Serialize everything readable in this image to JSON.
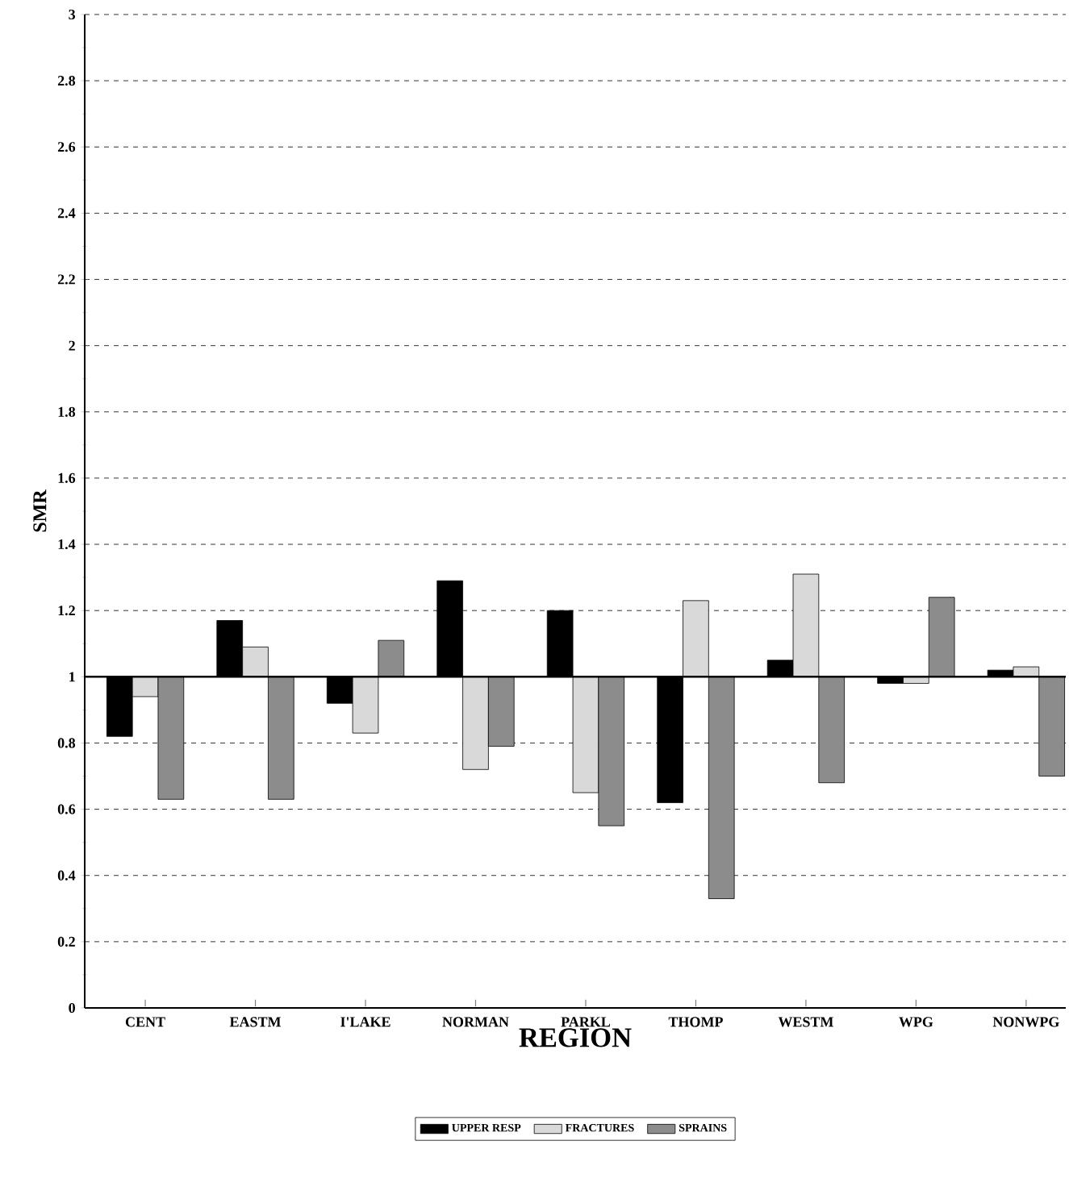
{
  "chart_data": {
    "type": "bar",
    "xlabel": "REGION",
    "ylabel": "SMR",
    "categories": [
      "CENT",
      "EASTM",
      "I'LAKE",
      "NORMAN",
      "PARKL",
      "THOMP",
      "WESTM",
      "WPG",
      "NONWPG"
    ],
    "series": [
      {
        "name": "UPPER RESP",
        "color": "#000000",
        "base": [
          1,
          1,
          1,
          1,
          1,
          1,
          1,
          1,
          1
        ],
        "values": [
          -0.18,
          0.17,
          -0.08,
          0.29,
          0.2,
          -0.38,
          0.05,
          -0.02,
          0.02
        ]
      },
      {
        "name": "FRACTURES",
        "color": "#d9d9d9",
        "base": [
          1,
          1,
          1,
          1,
          1,
          1,
          1,
          1,
          1
        ],
        "values": [
          -0.06,
          0.09,
          -0.17,
          -0.28,
          -0.35,
          0.23,
          0.31,
          -0.02,
          0.03
        ]
      },
      {
        "name": "SPRAINS",
        "color": "#8c8c8c",
        "base": [
          1,
          1,
          1,
          1,
          1,
          1,
          1,
          1,
          1
        ],
        "values": [
          -0.37,
          -0.37,
          0.11,
          -0.21,
          -0.45,
          -0.67,
          -0.32,
          0.24,
          -0.3
        ]
      }
    ],
    "ylim": [
      0,
      3
    ],
    "yticks": [
      0,
      0.2,
      0.4,
      0.6,
      0.8,
      1,
      1.2,
      1.4,
      1.6,
      1.8,
      2,
      2.2,
      2.4,
      2.6,
      2.8,
      3
    ],
    "grid": "y",
    "legend": "bottom",
    "ref_lines": [
      {
        "axis": "y",
        "value": 1,
        "color": "#000000",
        "line_style": "solid"
      }
    ]
  }
}
